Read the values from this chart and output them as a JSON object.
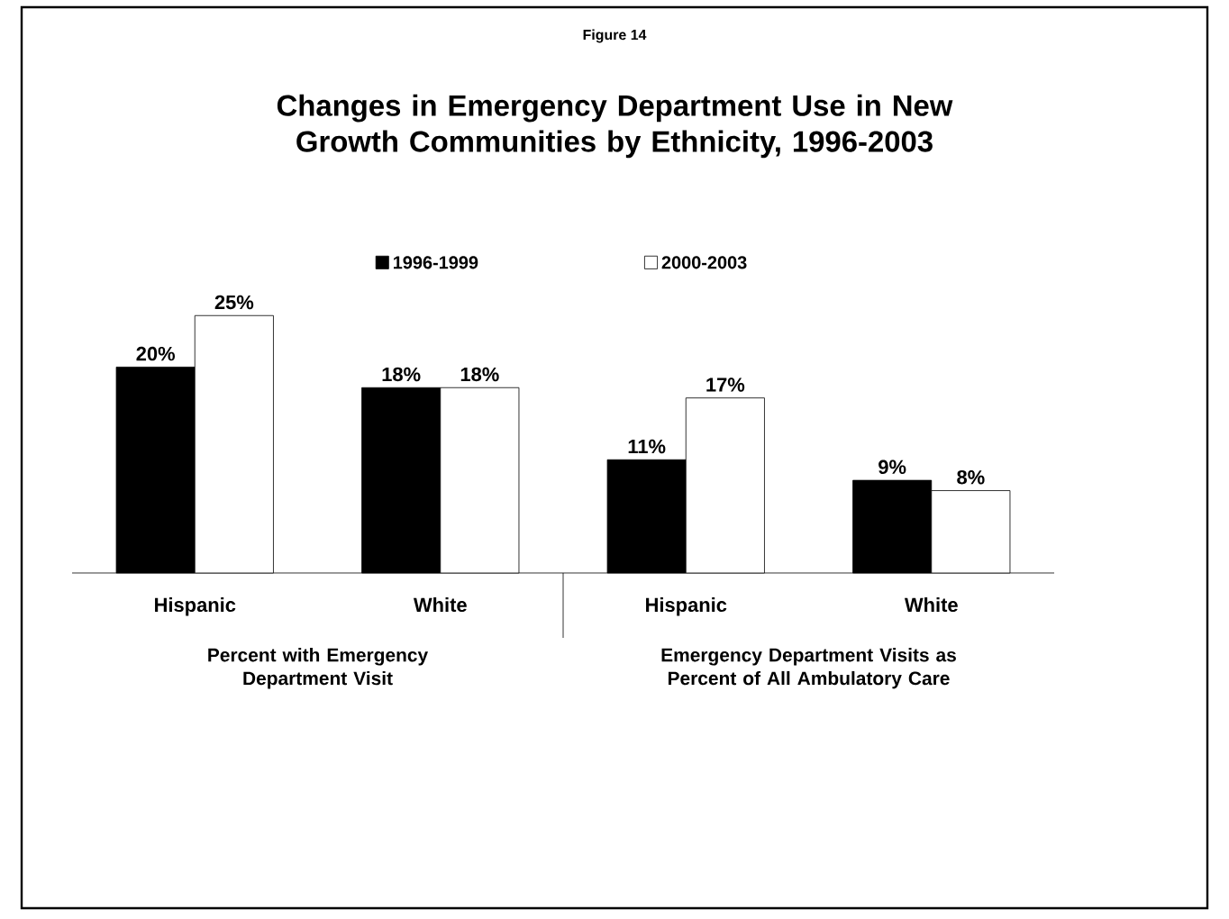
{
  "chart_data": {
    "type": "bar",
    "title": "Changes in Emergency Department Use in New\nGrowth Communities by Ethnicity, 1996-2003",
    "categories": [
      "Hispanic",
      "White",
      "Hispanic",
      "White"
    ],
    "series": [
      {
        "name": "1996-1999",
        "color": "#000000",
        "values": [
          20,
          18,
          11,
          9
        ],
        "value_labels": [
          "20%",
          "18%",
          "11%",
          "9%"
        ]
      },
      {
        "name": "2000-2003",
        "color": "#ffffff",
        "values": [
          25,
          18,
          17,
          8
        ],
        "value_labels": [
          "25%",
          "18%",
          "17%",
          "8%"
        ]
      }
    ],
    "tick_labels": "x",
    "legend": "top",
    "annotations": [
      "Figure 14",
      "Percent with Emergency\nDepartment Visit",
      "Emergency Department Visits as\nPercent of All Ambulatory Care"
    ]
  }
}
